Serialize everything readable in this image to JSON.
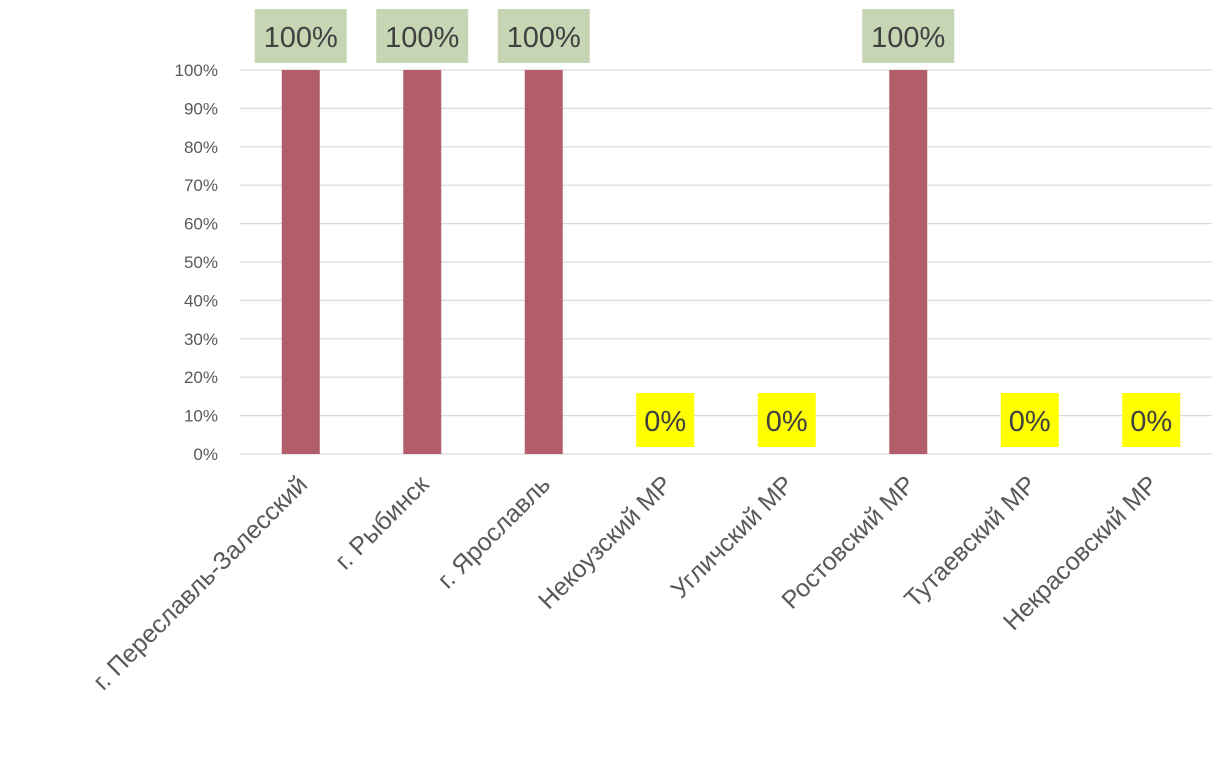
{
  "chart_data": {
    "type": "bar",
    "categories": [
      "г. Переславль-Залесский",
      "г. Рыбинск",
      "г. Ярославль",
      "Некоузский МР",
      "Угличский МР",
      "Ростовский МР",
      "Тутаевский МР",
      "Некрасовский МР"
    ],
    "values": [
      100,
      100,
      100,
      0,
      0,
      100,
      0,
      0
    ],
    "data_labels": [
      "100%",
      "100%",
      "100%",
      "0%",
      "0%",
      "100%",
      "0%",
      "0%"
    ],
    "y_tick_labels": [
      "0%",
      "10%",
      "20%",
      "30%",
      "40%",
      "50%",
      "60%",
      "70%",
      "80%",
      "90%",
      "100%"
    ],
    "ylim": [
      0,
      100
    ],
    "grid": true,
    "legend": "none",
    "bar_color": "#b25e6a",
    "label_bg_full": "#c6d6b4",
    "label_bg_zero": "#ffff00",
    "gridline_color": "#d9d9d9"
  }
}
